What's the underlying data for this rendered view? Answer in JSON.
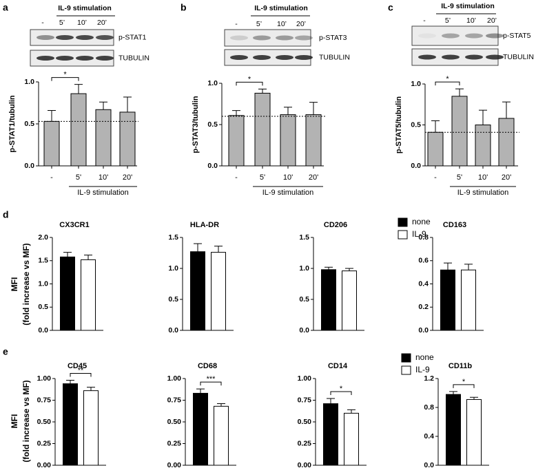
{
  "chart_data": [
    {
      "type": "bar",
      "panel": "a",
      "blot": {
        "header": "IL-9 stimulation",
        "lanes": [
          "-",
          "5’",
          "10’",
          "20’"
        ],
        "labels": [
          "p-STAT1",
          "TUBULIN"
        ]
      },
      "ylabel": "p-STAT1/tubulin",
      "xlabel": "IL-9 stimulation",
      "categories": [
        "-",
        "5'",
        "10'",
        "20'"
      ],
      "values": [
        0.53,
        0.86,
        0.67,
        0.64
      ],
      "errors": [
        0.13,
        0.11,
        0.09,
        0.18
      ],
      "color": "#b3b3b3",
      "reference_line": 0.53,
      "ylim": [
        0,
        1.0
      ],
      "yticks": [
        {
          "value": 0,
          "label": "0.0"
        },
        0.5,
        {
          "value": 1.0,
          "label": "1.0"
        }
      ],
      "significance": [
        {
          "label": "*",
          "between": [
            0,
            1
          ]
        }
      ]
    },
    {
      "type": "bar",
      "panel": "b",
      "blot": {
        "header": "IL-9 stimulation",
        "lanes": [
          "-",
          "5’",
          "10’",
          "20’"
        ],
        "labels": [
          "p-STAT3",
          "TUBULIN"
        ]
      },
      "ylabel": "p-STAT3/tubulin",
      "xlabel": "IL-9 stimulation",
      "categories": [
        "-",
        "5'",
        "10'",
        "20'"
      ],
      "values": [
        0.61,
        0.88,
        0.62,
        0.62
      ],
      "errors": [
        0.06,
        0.05,
        0.09,
        0.15
      ],
      "color": "#b3b3b3",
      "reference_line": 0.6,
      "ylim": [
        0,
        1.0
      ],
      "yticks": [
        {
          "value": 0,
          "label": "0.0"
        },
        0.5,
        {
          "value": 1.0,
          "label": "1.0"
        }
      ],
      "significance": [
        {
          "label": "*",
          "between": [
            0,
            1
          ]
        }
      ]
    },
    {
      "type": "bar",
      "panel": "c",
      "blot": {
        "header": "IL-9 stimulation",
        "lanes": [
          "-",
          "5’",
          "10’",
          "20’"
        ],
        "labels": [
          "p-STAT5",
          "TUBULIN"
        ]
      },
      "ylabel": "p-STAT5/tubulin",
      "xlabel": "IL-9 stimulation",
      "categories": [
        "-",
        "5'",
        "10'",
        "20'"
      ],
      "values": [
        0.41,
        0.85,
        0.5,
        0.58
      ],
      "errors": [
        0.14,
        0.09,
        0.18,
        0.2
      ],
      "color": "#b3b3b3",
      "reference_line": 0.41,
      "ylim": [
        0,
        1.0
      ],
      "yticks": [
        {
          "value": 0,
          "label": "0.0"
        },
        0.5,
        {
          "value": 1.0,
          "label": "1.0"
        }
      ],
      "significance": [
        {
          "label": "*",
          "between": [
            0,
            1
          ]
        }
      ]
    },
    {
      "type": "bar",
      "title": "CX3CR1",
      "values": [
        1.58,
        1.52
      ],
      "errors": [
        0.1,
        0.1
      ],
      "colors": [
        "#000000",
        "#ffffff"
      ],
      "ylim": [
        0,
        2.0
      ],
      "yticks": [
        {
          "value": 0,
          "label": "0.0"
        },
        0.5,
        {
          "value": 1.0,
          "label": "1.0"
        },
        1.5,
        {
          "value": 2.0,
          "label": "2.0"
        }
      ]
    },
    {
      "type": "bar",
      "title": "HLA-DR",
      "values": [
        1.27,
        1.26
      ],
      "errors": [
        0.13,
        0.1
      ],
      "colors": [
        "#000000",
        "#ffffff"
      ],
      "ylim": [
        0,
        1.5
      ],
      "yticks": [
        {
          "value": 0,
          "label": "0.0"
        },
        0.5,
        {
          "value": 1.0,
          "label": "1.0"
        },
        1.5
      ]
    },
    {
      "type": "bar",
      "title": "CD206",
      "values": [
        0.98,
        0.96
      ],
      "errors": [
        0.04,
        0.04
      ],
      "colors": [
        "#000000",
        "#ffffff"
      ],
      "ylim": [
        0,
        1.5
      ],
      "yticks": [
        {
          "value": 0,
          "label": "0.0"
        },
        0.5,
        {
          "value": 1.0,
          "label": "1.0"
        },
        1.5
      ]
    },
    {
      "type": "bar",
      "title": "CD163",
      "values": [
        0.52,
        0.52
      ],
      "errors": [
        0.06,
        0.05
      ],
      "colors": [
        "#000000",
        "#ffffff"
      ],
      "ylim": [
        0,
        0.8
      ],
      "yticks": [
        {
          "value": 0,
          "label": "0.0"
        },
        0.2,
        0.4,
        0.6,
        0.8
      ]
    },
    {
      "type": "bar",
      "title": "CD45",
      "values": [
        0.94,
        0.86
      ],
      "errors": [
        0.04,
        0.04
      ],
      "colors": [
        "#000000",
        "#ffffff"
      ],
      "ylim": [
        0,
        1.0
      ],
      "yticks": [
        {
          "value": 0,
          "label": "0.00"
        },
        0.25,
        {
          "value": 0.5,
          "label": "0.50"
        },
        0.75,
        {
          "value": 1.0,
          "label": "1.00"
        }
      ],
      "significance": [
        {
          "label": "**",
          "between": [
            0,
            1
          ]
        }
      ]
    },
    {
      "type": "bar",
      "title": "CD68",
      "values": [
        0.83,
        0.68
      ],
      "errors": [
        0.05,
        0.03
      ],
      "colors": [
        "#000000",
        "#ffffff"
      ],
      "ylim": [
        0,
        1.0
      ],
      "yticks": [
        {
          "value": 0,
          "label": "0.00"
        },
        0.25,
        {
          "value": 0.5,
          "label": "0.50"
        },
        0.75,
        {
          "value": 1.0,
          "label": "1.00"
        }
      ],
      "significance": [
        {
          "label": "***",
          "between": [
            0,
            1
          ]
        }
      ]
    },
    {
      "type": "bar",
      "title": "CD14",
      "values": [
        0.71,
        0.6
      ],
      "errors": [
        0.06,
        0.04
      ],
      "colors": [
        "#000000",
        "#ffffff"
      ],
      "ylim": [
        0,
        1.0
      ],
      "yticks": [
        {
          "value": 0,
          "label": "0.00"
        },
        0.25,
        {
          "value": 0.5,
          "label": "0.50"
        },
        0.75,
        {
          "value": 1.0,
          "label": "1.00"
        }
      ],
      "significance": [
        {
          "label": "*",
          "between": [
            0,
            1
          ]
        }
      ]
    },
    {
      "type": "bar",
      "title": "CD11b",
      "values": [
        0.98,
        0.91
      ],
      "errors": [
        0.04,
        0.03
      ],
      "colors": [
        "#000000",
        "#ffffff"
      ],
      "ylim": [
        0,
        1.2
      ],
      "yticks": [
        {
          "value": 0,
          "label": "0.0"
        },
        0.4,
        0.8,
        1.2
      ],
      "significance": [
        {
          "label": "*",
          "between": [
            0,
            1
          ]
        }
      ]
    }
  ],
  "panels_de": [
    {
      "label": "d",
      "ylabel": [
        "MFI",
        "(fold increase vs MF)"
      ],
      "legend": [
        {
          "name": "none",
          "color": "#000000"
        },
        {
          "name": "IL-9",
          "color": "#ffffff"
        }
      ]
    },
    {
      "label": "e",
      "ylabel": [
        "MFI",
        "(fold increase vs MF)"
      ],
      "legend": [
        {
          "name": "none",
          "color": "#000000"
        },
        {
          "name": "IL-9",
          "color": "#ffffff"
        }
      ]
    }
  ]
}
